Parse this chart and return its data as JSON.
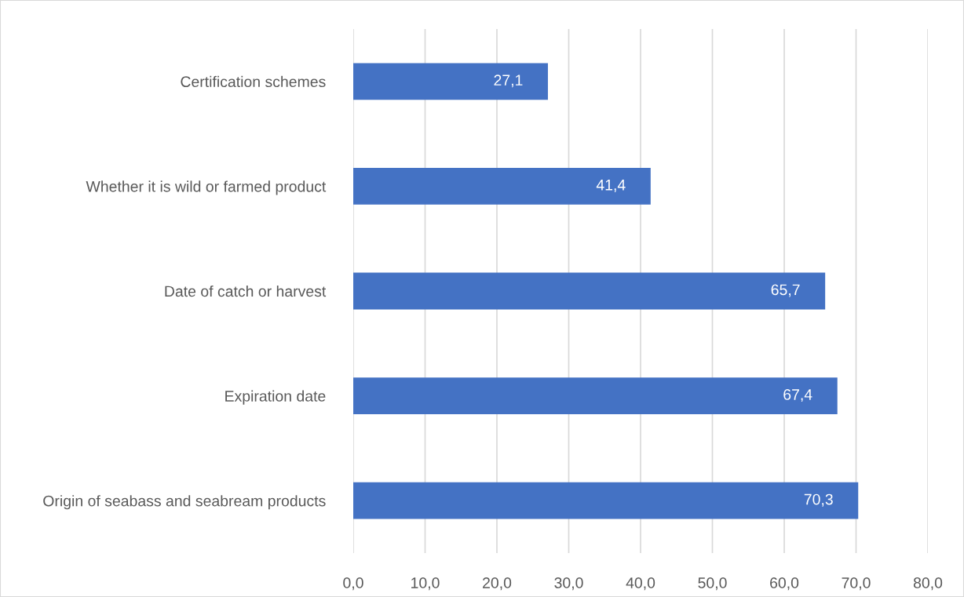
{
  "chart_data": {
    "type": "bar",
    "orientation": "horizontal",
    "categories": [
      "Certification schemes",
      "Whether it is wild or farmed product",
      "Date of catch or harvest",
      "Expiration date",
      "Origin of seabass and seabream products"
    ],
    "values": [
      27.1,
      41.4,
      65.7,
      67.4,
      70.3
    ],
    "value_labels": [
      "27,1",
      "41,4",
      "65,7",
      "67,4",
      "70,3"
    ],
    "color": "#4472c4",
    "xlim": [
      0,
      80
    ],
    "xticks": [
      {
        "value": 0,
        "label": "0,0"
      },
      {
        "value": 10,
        "label": "10,0"
      },
      {
        "value": 20,
        "label": "20,0"
      },
      {
        "value": 30,
        "label": "30,0"
      },
      {
        "value": 40,
        "label": "40,0"
      },
      {
        "value": 50,
        "label": "50,0"
      },
      {
        "value": 60,
        "label": "60,0"
      },
      {
        "value": 70,
        "label": "70,0"
      },
      {
        "value": 80,
        "label": "80,0"
      }
    ],
    "grid": "x",
    "legend": false
  }
}
